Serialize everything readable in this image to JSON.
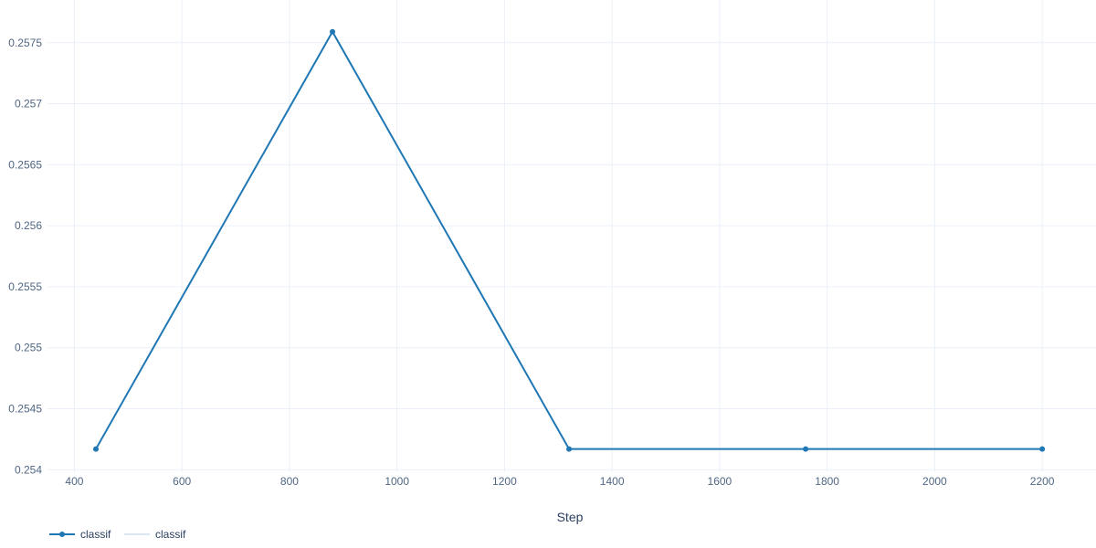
{
  "chart_data": {
    "type": "line",
    "title": "",
    "xlabel": "Step",
    "ylabel": "",
    "xlim": [
      350,
      2300
    ],
    "ylim": [
      0.25398,
      0.25785
    ],
    "x_ticks": [
      400,
      600,
      800,
      1000,
      1200,
      1400,
      1600,
      1800,
      2000,
      2200
    ],
    "y_ticks": [
      0.254,
      0.2545,
      0.255,
      0.2555,
      0.256,
      0.2565,
      0.257,
      0.2575
    ],
    "grid": true,
    "legend_position": "bottom-left",
    "series": [
      {
        "name": "classif",
        "color": "#1f77b4",
        "markers": true,
        "x": [
          440,
          880,
          1320,
          1760,
          2200
        ],
        "y": [
          0.25417,
          0.25759,
          0.25417,
          0.25417,
          0.25417
        ]
      },
      {
        "name": "classif",
        "color": "#dbe5f0",
        "markers": false,
        "x": [],
        "y": []
      }
    ]
  }
}
